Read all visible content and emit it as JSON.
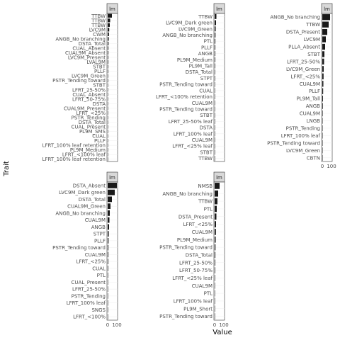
{
  "chart_data": {
    "type": "bar",
    "orientation": "horizontal",
    "xlabel": "Value",
    "ylabel": "Trait",
    "x_ticks": [
      "0",
      "100"
    ],
    "grid": true,
    "legend": "none",
    "colors": {
      "bar": "#1a1a1a",
      "panel_bg": "#ffffff",
      "strip_bg": "#d9d9d9",
      "grid": "#ebebeb",
      "panel_border": "#333333"
    },
    "panels": [
      {
        "strip": "lm",
        "categories": [
          "TTBW",
          "TTBW",
          "TTBW",
          "LVC9M",
          "CWM",
          "ANGB_No branching",
          "DSTA_Total",
          "CUAL_Absent",
          "CUAL9M_Absent",
          "LVC9M_Present",
          "LVAL9M",
          "STBT",
          "PLLF",
          "LVC9M_Green",
          "PSTR_Tending toward",
          "STBT",
          "LFRT_25-50%",
          "CUAL_Absent",
          "LFRT_50-75%",
          "DSTA",
          "CUAL9M_Present",
          "LFRT_<25%",
          "PSTR_Tending",
          "DSTA_Total",
          "CUAL_Present",
          "PL9M_SMS",
          "CUAL",
          "PLLF",
          "LFRT_100% leaf retention",
          "PL9M_Medium",
          "LFRT_<100% leaf",
          "LFRT_100% leaf retention"
        ],
        "values": [
          60,
          35,
          30,
          22,
          18,
          15,
          12,
          10,
          9,
          8,
          8,
          7,
          7,
          6,
          6,
          5,
          5,
          5,
          4,
          4,
          4,
          3,
          3,
          3,
          3,
          2,
          2,
          2,
          2,
          1,
          1,
          1
        ]
      },
      {
        "strip": "lm",
        "categories": [
          "TTBW",
          "LVC9M_Dark green",
          "LVC9M_Green",
          "ANGB_No branching",
          "PTL",
          "PLLF",
          "ANGB",
          "PL9M_Medium",
          "PL9M_Tall",
          "DSTA_Total",
          "STPT",
          "PSTR_Tending toward",
          "CUAL",
          "LFRT_<100% retention",
          "CUAL9M",
          "PSTR_Tending toward",
          "STBT",
          "LFRT_25-50% leaf",
          "DSTA",
          "LFRT_100% leaf",
          "CUAL9M",
          "LFRT_<25% leaf",
          "STBT",
          "TTBW"
        ],
        "values": [
          25,
          20,
          15,
          12,
          10,
          9,
          8,
          8,
          7,
          6,
          6,
          5,
          5,
          5,
          4,
          4,
          3,
          3,
          3,
          2,
          2,
          2,
          1,
          1
        ]
      },
      {
        "strip": "lm",
        "categories": [
          "ANGB_No branching",
          "TTBW",
          "DSTA_Present",
          "LVC9M",
          "PLLA_Absent",
          "STBT",
          "LFRT_25-50%",
          "LVC9M_Green",
          "LFRT_<25%",
          "CUAL9M",
          "PLLF",
          "PL9M_Tall",
          "ANGB",
          "CUAL9M",
          "LNGB",
          "PSTR_Tending",
          "LFRT_100% leaf",
          "PSTR_Tending toward",
          "LVC9M_Green",
          "CBTN"
        ],
        "values": [
          110,
          90,
          70,
          50,
          40,
          30,
          25,
          20,
          18,
          15,
          12,
          10,
          8,
          6,
          5,
          4,
          3,
          2,
          2,
          1
        ]
      },
      {
        "strip": "lm",
        "categories": [
          "DSTA_Absent",
          "LVC9M_Dark green",
          "DSTA_Total",
          "CUAL9M_Green",
          "ANGB_No branching",
          "CUAL9M",
          "ANGB",
          "STPT",
          "PLLF",
          "PSTR_Tending toward",
          "CUAL9M",
          "LFRT_<25%",
          "CUAL",
          "PTL",
          "CUAL_Present",
          "LFRT_25-50%",
          "PSTR_Tending",
          "LFRT_100% leaf",
          "SNGS",
          "LFRT_<100%"
        ],
        "values": [
          130,
          100,
          60,
          40,
          30,
          25,
          20,
          15,
          12,
          10,
          9,
          8,
          7,
          6,
          5,
          4,
          3,
          2,
          2,
          1
        ]
      },
      {
        "strip": "lm",
        "categories": [
          "NMSB",
          "ANGB_No branching",
          "TTBW",
          "PTL",
          "DSTA_Present",
          "LFRT_<25%",
          "CUAL9M",
          "PL9M_Medium",
          "PSTR_Tending toward",
          "DSTA_Total",
          "LFRT_25-50%",
          "LFRT_50-75%",
          "LFRT_<25% leaf",
          "CUAL9M",
          "PTL",
          "LFRT_100% leaf",
          "PL9M_Short",
          "PSTR_Tending toward"
        ],
        "values": [
          70,
          50,
          40,
          30,
          25,
          20,
          18,
          15,
          12,
          10,
          8,
          7,
          6,
          5,
          4,
          3,
          2,
          1
        ]
      }
    ]
  }
}
